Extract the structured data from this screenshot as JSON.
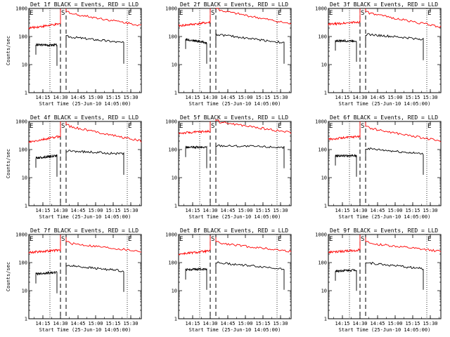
{
  "chart_data": [
    {
      "type": "line",
      "title": "Det 1f BLACK = Events, RED = LLD",
      "xlabel": "Start Time (25-Jun-10 14:05:00)",
      "ylabel": "Counts/sec",
      "yscale": "log",
      "ylim": [
        1,
        1000
      ],
      "yticks": [
        "1",
        "10",
        "100",
        "1000"
      ],
      "xlim": [
        14.05,
        15.65
      ],
      "xticks": [
        "14:15",
        "14:30",
        "14:45",
        "15:00",
        "15:15",
        "15:30"
      ],
      "markers": [
        "E",
        "S",
        "E"
      ],
      "series": [
        {
          "name": "Events",
          "color": "#000000",
          "segments": [
            {
              "x": [
                14.15,
                14.45
              ],
              "y": [
                50,
                50
              ]
            },
            {
              "x": [
                14.58,
                15.4
              ],
              "y": [
                100,
                60
              ]
            }
          ]
        },
        {
          "name": "LLD",
          "color": "#ff0000",
          "segments": [
            {
              "x": [
                14.05,
                14.5
              ],
              "y": [
                200,
                280
              ]
            },
            {
              "x": [
                14.58,
                15.65
              ],
              "y": [
                700,
                250
              ]
            }
          ]
        }
      ]
    },
    {
      "type": "line",
      "title": "Det 2f BLACK = Events, RED = LLD",
      "xlabel": "Start Time (25-Jun-10 14:05:00)",
      "ylabel": "",
      "yscale": "log",
      "ylim": [
        1,
        1000
      ],
      "yticks": [
        "1",
        "10",
        "100",
        "1000"
      ],
      "xlim": [
        14.05,
        15.65
      ],
      "xticks": [
        "14:15",
        "14:30",
        "14:45",
        "15:00",
        "15:15",
        "15:30"
      ],
      "markers": [
        "E",
        "S",
        "E"
      ],
      "series": [
        {
          "name": "Events",
          "color": "#000000",
          "segments": [
            {
              "x": [
                14.15,
                14.45
              ],
              "y": [
                80,
                60
              ]
            },
            {
              "x": [
                14.58,
                15.55
              ],
              "y": [
                120,
                60
              ]
            }
          ]
        },
        {
          "name": "LLD",
          "color": "#ff0000",
          "segments": [
            {
              "x": [
                14.05,
                14.5
              ],
              "y": [
                240,
                320
              ]
            },
            {
              "x": [
                14.58,
                15.65
              ],
              "y": [
                900,
                280
              ]
            }
          ]
        }
      ]
    },
    {
      "type": "line",
      "title": "Det 3f BLACK = Events, RED = LLD",
      "xlabel": "Start Time (25-Jun-10 14:05:00)",
      "ylabel": "",
      "yscale": "log",
      "ylim": [
        1,
        1000
      ],
      "yticks": [
        "1",
        "10",
        "100",
        "1000"
      ],
      "xlim": [
        14.05,
        15.65
      ],
      "xticks": [
        "14:15",
        "14:30",
        "14:45",
        "15:00",
        "15:15",
        "15:30"
      ],
      "markers": [
        "E",
        "S",
        "E"
      ],
      "series": [
        {
          "name": "Events",
          "color": "#000000",
          "segments": [
            {
              "x": [
                14.15,
                14.45
              ],
              "y": [
                70,
                70
              ]
            },
            {
              "x": [
                14.58,
                15.4
              ],
              "y": [
                120,
                80
              ]
            }
          ]
        },
        {
          "name": "LLD",
          "color": "#ff0000",
          "segments": [
            {
              "x": [
                14.05,
                14.5
              ],
              "y": [
                270,
                330
              ]
            },
            {
              "x": [
                14.58,
                15.65
              ],
              "y": [
                700,
                220
              ]
            }
          ]
        }
      ]
    },
    {
      "type": "line",
      "title": "Det 4f BLACK = Events, RED = LLD",
      "xlabel": "Start Time (25-Jun-10 14:05:00)",
      "ylabel": "Counts/sec",
      "yscale": "log",
      "ylim": [
        1,
        1000
      ],
      "yticks": [
        "1",
        "10",
        "100",
        "1000"
      ],
      "xlim": [
        14.05,
        15.65
      ],
      "xticks": [
        "14:15",
        "14:30",
        "14:45",
        "15:00",
        "15:15",
        "15:30"
      ],
      "markers": [
        "E",
        "S",
        "E"
      ],
      "series": [
        {
          "name": "Events",
          "color": "#000000",
          "segments": [
            {
              "x": [
                14.15,
                14.45
              ],
              "y": [
                50,
                60
              ]
            },
            {
              "x": [
                14.58,
                15.4
              ],
              "y": [
                90,
                70
              ]
            }
          ]
        },
        {
          "name": "LLD",
          "color": "#ff0000",
          "segments": [
            {
              "x": [
                14.05,
                14.5
              ],
              "y": [
                180,
                300
              ]
            },
            {
              "x": [
                14.58,
                15.65
              ],
              "y": [
                700,
                200
              ]
            }
          ]
        }
      ]
    },
    {
      "type": "line",
      "title": "Det 5f BLACK = Events, RED = LLD",
      "xlabel": "Start Time (25-Jun-10 14:05:00)",
      "ylabel": "",
      "yscale": "log",
      "ylim": [
        1,
        1000
      ],
      "yticks": [
        "1",
        "10",
        "100",
        "1000"
      ],
      "xlim": [
        14.05,
        15.65
      ],
      "xticks": [
        "14:15",
        "14:30",
        "14:45",
        "15:00",
        "15:15",
        "15:30"
      ],
      "markers": [
        "E",
        "S",
        "E"
      ],
      "series": [
        {
          "name": "Events",
          "color": "#000000",
          "segments": [
            {
              "x": [
                14.15,
                14.45
              ],
              "y": [
                120,
                120
              ]
            },
            {
              "x": [
                14.58,
                15.55
              ],
              "y": [
                140,
                120
              ]
            }
          ]
        },
        {
          "name": "LLD",
          "color": "#ff0000",
          "segments": [
            {
              "x": [
                14.05,
                14.5
              ],
              "y": [
                380,
                450
              ]
            },
            {
              "x": [
                14.58,
                15.65
              ],
              "y": [
                1000,
                400
              ]
            }
          ]
        }
      ]
    },
    {
      "type": "line",
      "title": "Det 6f BLACK = Events, RED = LLD",
      "xlabel": "Start Time (25-Jun-10 14:05:00)",
      "ylabel": "",
      "yscale": "log",
      "ylim": [
        1,
        1000
      ],
      "yticks": [
        "1",
        "10",
        "100",
        "1000"
      ],
      "xlim": [
        14.05,
        15.65
      ],
      "xticks": [
        "14:15",
        "14:30",
        "14:45",
        "15:00",
        "15:15",
        "15:30"
      ],
      "markers": [
        "E",
        "S",
        "E"
      ],
      "series": [
        {
          "name": "Events",
          "color": "#000000",
          "segments": [
            {
              "x": [
                14.15,
                14.45
              ],
              "y": [
                60,
                60
              ]
            },
            {
              "x": [
                14.58,
                15.4
              ],
              "y": [
                110,
                70
              ]
            }
          ]
        },
        {
          "name": "LLD",
          "color": "#ff0000",
          "segments": [
            {
              "x": [
                14.05,
                14.5
              ],
              "y": [
                230,
                300
              ]
            },
            {
              "x": [
                14.58,
                15.65
              ],
              "y": [
                600,
                200
              ]
            }
          ]
        }
      ]
    },
    {
      "type": "line",
      "title": "Det 7f BLACK = Events, RED = LLD",
      "xlabel": "Start Time (25-Jun-10 14:05:00)",
      "ylabel": "Counts/sec",
      "yscale": "log",
      "ylim": [
        1,
        1000
      ],
      "yticks": [
        "1",
        "10",
        "100",
        "1000"
      ],
      "xlim": [
        14.05,
        15.65
      ],
      "xticks": [
        "14:15",
        "14:30",
        "14:45",
        "15:00",
        "15:15",
        "15:30"
      ],
      "markers": [
        "E",
        "S",
        "E"
      ],
      "series": [
        {
          "name": "Events",
          "color": "#000000",
          "segments": [
            {
              "x": [
                14.15,
                14.45
              ],
              "y": [
                40,
                45
              ]
            },
            {
              "x": [
                14.58,
                15.4
              ],
              "y": [
                80,
                50
              ]
            }
          ]
        },
        {
          "name": "LLD",
          "color": "#ff0000",
          "segments": [
            {
              "x": [
                14.05,
                14.5
              ],
              "y": [
                230,
                280
              ]
            },
            {
              "x": [
                14.58,
                15.65
              ],
              "y": [
                500,
                250
              ]
            }
          ]
        }
      ]
    },
    {
      "type": "line",
      "title": "Det 8f BLACK = Events, RED = LLD",
      "xlabel": "Start Time (25-Jun-10 14:05:00)",
      "ylabel": "",
      "yscale": "log",
      "ylim": [
        1,
        1000
      ],
      "yticks": [
        "1",
        "10",
        "100",
        "1000"
      ],
      "xlim": [
        14.05,
        15.65
      ],
      "xticks": [
        "14:15",
        "14:30",
        "14:45",
        "15:00",
        "15:15",
        "15:30"
      ],
      "markers": [
        "E",
        "S",
        "E"
      ],
      "series": [
        {
          "name": "Events",
          "color": "#000000",
          "segments": [
            {
              "x": [
                14.15,
                14.45
              ],
              "y": [
                55,
                60
              ]
            },
            {
              "x": [
                14.58,
                15.55
              ],
              "y": [
                100,
                60
              ]
            }
          ]
        },
        {
          "name": "LLD",
          "color": "#ff0000",
          "segments": [
            {
              "x": [
                14.05,
                14.5
              ],
              "y": [
                200,
                260
              ]
            },
            {
              "x": [
                14.58,
                15.65
              ],
              "y": [
                500,
                250
              ]
            }
          ]
        }
      ]
    },
    {
      "type": "line",
      "title": "Det 9f BLACK = Events, RED = LLD",
      "xlabel": "Start Time (25-Jun-10 14:05:00)",
      "ylabel": "",
      "yscale": "log",
      "ylim": [
        1,
        1000
      ],
      "yticks": [
        "1",
        "10",
        "100",
        "1000"
      ],
      "xlim": [
        14.05,
        15.65
      ],
      "xticks": [
        "14:15",
        "14:30",
        "14:45",
        "15:00",
        "15:15",
        "15:30"
      ],
      "markers": [
        "E",
        "S",
        "E"
      ],
      "series": [
        {
          "name": "Events",
          "color": "#000000",
          "segments": [
            {
              "x": [
                14.15,
                14.45
              ],
              "y": [
                50,
                55
              ]
            },
            {
              "x": [
                14.58,
                15.4
              ],
              "y": [
                100,
                60
              ]
            }
          ]
        },
        {
          "name": "LLD",
          "color": "#ff0000",
          "segments": [
            {
              "x": [
                14.05,
                14.5
              ],
              "y": [
                230,
                280
              ]
            },
            {
              "x": [
                14.58,
                15.65
              ],
              "y": [
                500,
                250
              ]
            }
          ]
        }
      ]
    }
  ]
}
